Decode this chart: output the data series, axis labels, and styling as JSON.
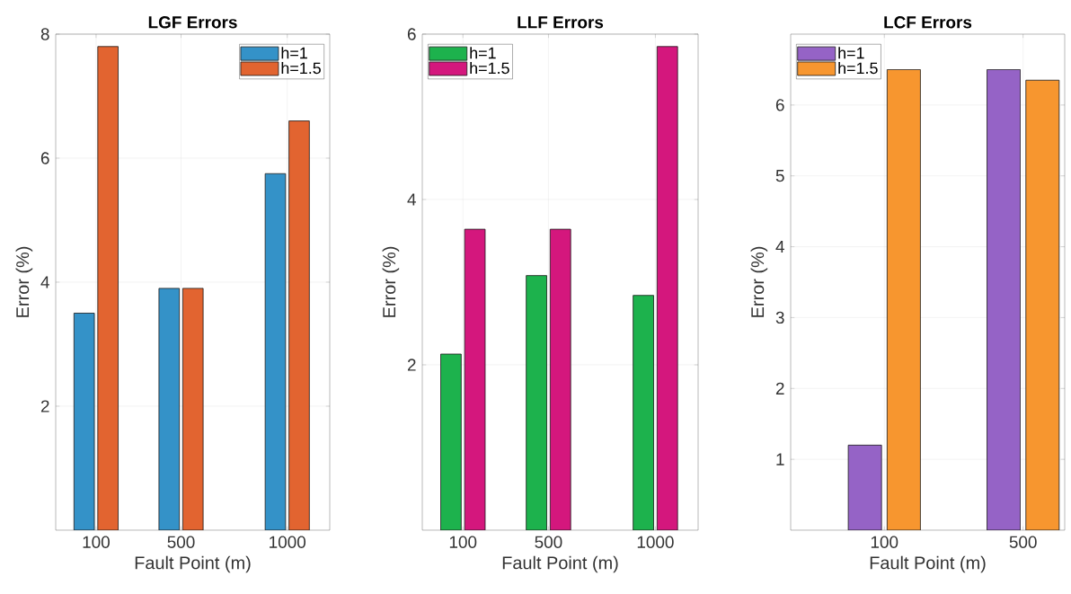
{
  "chart_data": [
    {
      "type": "bar",
      "title": "LGF Errors",
      "xlabel": "Fault Point (m)",
      "ylabel": "Error (%)",
      "x": [
        100,
        500,
        1000
      ],
      "xlim": [
        -90,
        1200
      ],
      "xticks": [
        100,
        500,
        1000
      ],
      "ylim": [
        0,
        8
      ],
      "yticks": [
        2,
        4,
        6,
        8
      ],
      "grid": true,
      "legend": "top right",
      "series": [
        {
          "name": "h=1",
          "color": "#3492c8",
          "values": [
            3.5,
            3.9,
            5.75
          ]
        },
        {
          "name": "h=1.5",
          "color": "#e26430",
          "values": [
            7.8,
            3.9,
            6.6
          ]
        }
      ]
    },
    {
      "type": "bar",
      "title": "LLF Errors",
      "xlabel": "Fault Point (m)",
      "ylabel": "Error (%)",
      "x": [
        100,
        500,
        1000
      ],
      "xlim": [
        -90,
        1200
      ],
      "xticks": [
        100,
        500,
        1000
      ],
      "ylim": [
        0,
        6
      ],
      "yticks": [
        2,
        4,
        6
      ],
      "grid": true,
      "legend": "top left",
      "series": [
        {
          "name": "h=1",
          "color": "#1db24d",
          "values": [
            2.13,
            3.08,
            2.84
          ]
        },
        {
          "name": "h=1.5",
          "color": "#d4177d",
          "values": [
            3.64,
            3.64,
            5.85
          ]
        }
      ]
    },
    {
      "type": "bar",
      "title": "LCF Errors",
      "xlabel": "Fault Point (m)",
      "ylabel": "Error (%)",
      "x": [
        100,
        500
      ],
      "xlim": [
        -170,
        620
      ],
      "xticks": [
        100,
        500
      ],
      "ylim": [
        0,
        7
      ],
      "yticks": [
        1,
        2,
        3,
        4,
        5,
        6
      ],
      "grid": true,
      "legend": "top left",
      "series": [
        {
          "name": "h=1",
          "color": "#9563c6",
          "values": [
            1.2,
            6.5
          ]
        },
        {
          "name": "h=1.5",
          "color": "#f7962f",
          "values": [
            6.5,
            6.35
          ]
        }
      ]
    }
  ]
}
